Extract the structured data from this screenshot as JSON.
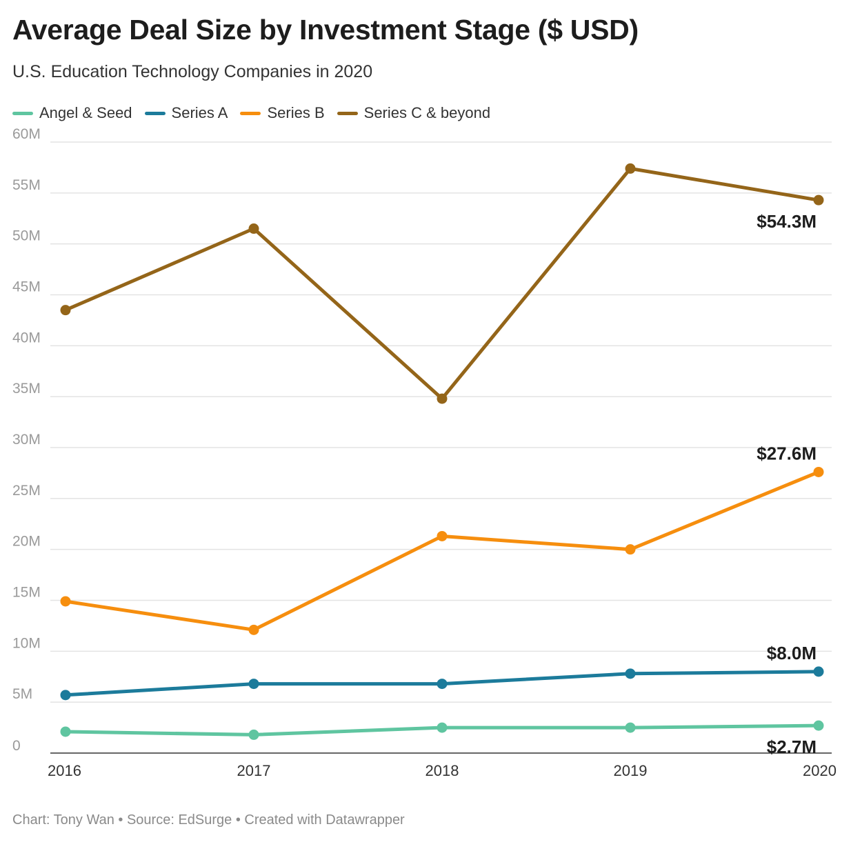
{
  "title": "Average Deal Size by Investment Stage ($ USD)",
  "subtitle": "U.S. Education Technology Companies in 2020",
  "footer": "Chart: Tony Wan • Source: EdSurge • Created with Datawrapper",
  "chart_data": {
    "type": "line",
    "x": [
      2016,
      2017,
      2018,
      2019,
      2020
    ],
    "x_tick_labels": [
      "2016",
      "2017",
      "2018",
      "2019",
      "2020"
    ],
    "ylim": [
      0,
      60
    ],
    "y_ticks": [
      0,
      5,
      10,
      15,
      20,
      25,
      30,
      35,
      40,
      45,
      50,
      55,
      60
    ],
    "y_tick_labels": [
      "0",
      "5M",
      "10M",
      "15M",
      "20M",
      "25M",
      "30M",
      "35M",
      "40M",
      "45M",
      "50M",
      "55M",
      "60M"
    ],
    "y_unit": "M",
    "grid": true,
    "legend_position": "top-left",
    "series": [
      {
        "name": "Angel & Seed",
        "color": "#5fc5a0",
        "values": [
          2.1,
          1.8,
          2.5,
          2.5,
          2.7
        ],
        "end_label": "$2.7M",
        "end_label_position": "below"
      },
      {
        "name": "Series A",
        "color": "#1c7b9b",
        "values": [
          5.7,
          6.8,
          6.8,
          7.8,
          8.0
        ],
        "end_label": "$8.0M",
        "end_label_position": "above"
      },
      {
        "name": "Series B",
        "color": "#f68e0e",
        "values": [
          14.9,
          12.1,
          21.3,
          20.0,
          27.6
        ],
        "end_label": "$27.6M",
        "end_label_position": "above"
      },
      {
        "name": "Series C & beyond",
        "color": "#946519",
        "values": [
          43.5,
          51.5,
          34.8,
          57.4,
          54.3
        ],
        "end_label": "$54.3M",
        "end_label_position": "below"
      }
    ]
  }
}
